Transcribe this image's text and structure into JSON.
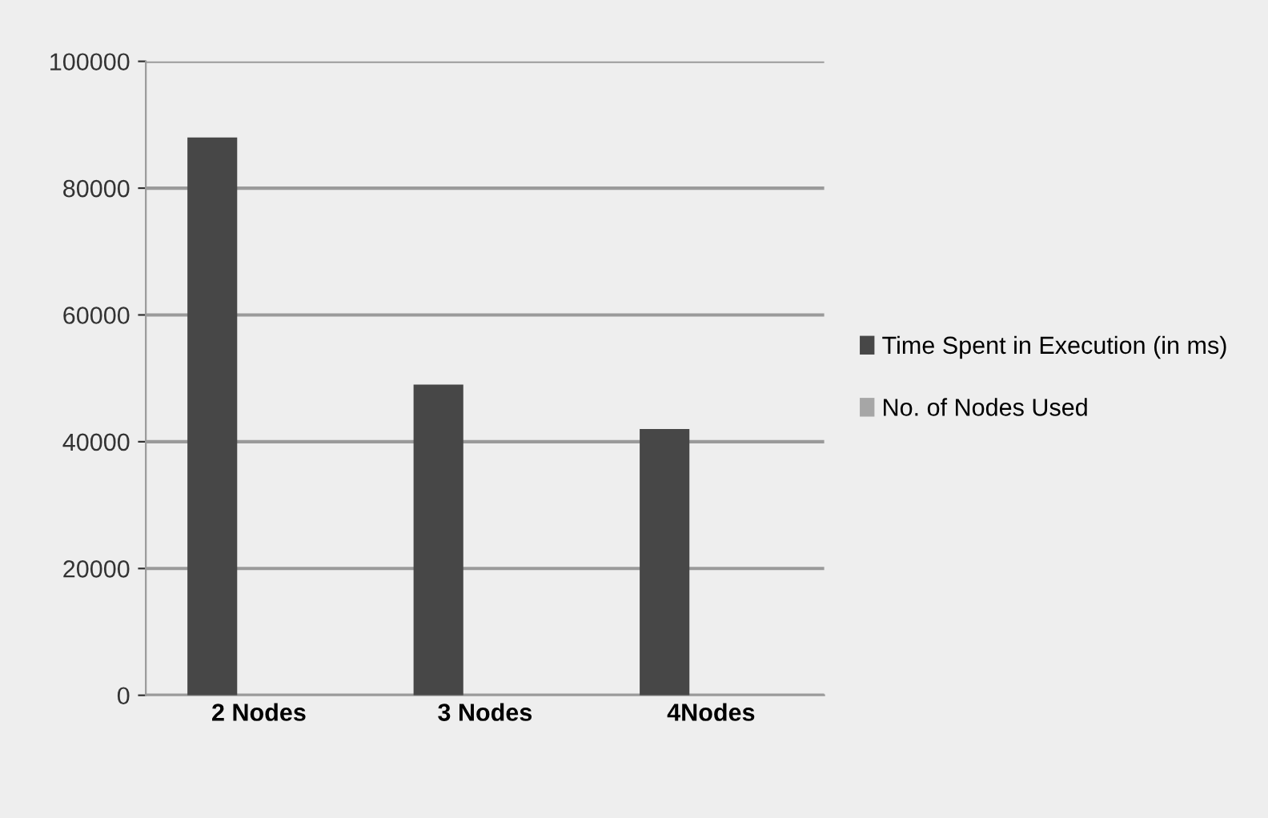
{
  "chart_data": {
    "type": "bar",
    "categories": [
      "2 Nodes",
      "3 Nodes",
      "4Nodes"
    ],
    "series": [
      {
        "name": "Time Spent in Execution (in ms)",
        "color": "#474747",
        "values": [
          88000,
          49000,
          42000
        ]
      },
      {
        "name": "No. of Nodes Used",
        "color": "#a6a6a6",
        "values": [
          null,
          null,
          null
        ]
      }
    ],
    "ylim": [
      0,
      100000
    ],
    "yticks": [
      0,
      20000,
      40000,
      60000,
      80000,
      100000
    ],
    "grid": "y",
    "legend": "right"
  }
}
